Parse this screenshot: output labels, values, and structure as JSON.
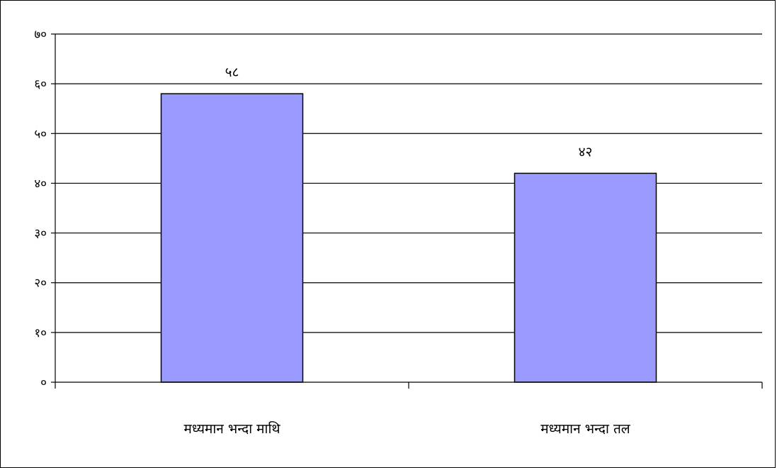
{
  "chart_data": {
    "type": "bar",
    "categories": [
      "मध्यमान भन्दा माथि",
      "मध्यमान भन्दा तल"
    ],
    "values": [
      58,
      42
    ],
    "value_labels": [
      "५८",
      "४२"
    ],
    "title": "",
    "xlabel": "",
    "ylabel": "",
    "ylim": [
      0,
      70
    ],
    "yticks": [
      0,
      10,
      20,
      30,
      40,
      50,
      60,
      70
    ],
    "ytick_labels": [
      "०",
      "१०",
      "२०",
      "३०",
      "४०",
      "५०",
      "६०",
      "७०"
    ],
    "grid": true,
    "legend": "none",
    "bar_color": "#9999ff",
    "bar_border_color": "#000000",
    "gridline_color": "#000000"
  }
}
